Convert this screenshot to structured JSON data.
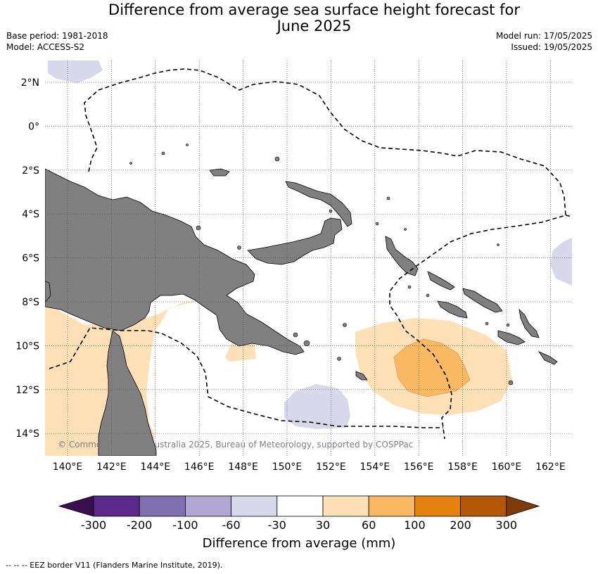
{
  "title_line1": "Difference from average sea surface height forecast for",
  "title_line2": "June 2025",
  "base_period": "Base period: 1981-2018",
  "model": "Model: ACCESS-S2",
  "model_run": "Model run: 17/05/2025",
  "issued": "Issued: 19/05/2025",
  "lat_labels": [
    "2°N",
    "0°",
    "2°S",
    "4°S",
    "6°S",
    "8°S",
    "10°S",
    "12°S",
    "14°S"
  ],
  "lon_labels": [
    "140°E",
    "142°E",
    "144°E",
    "146°E",
    "148°E",
    "150°E",
    "152°E",
    "154°E",
    "156°E",
    "158°E",
    "160°E",
    "162°E"
  ],
  "copyright": "© Commonwealth of Australia 2025, Bureau of Meteorology, supported by COSPPac",
  "colorbar": {
    "ticks": [
      "-300",
      "-200",
      "-100",
      "-60",
      "-30",
      "30",
      "60",
      "100",
      "200",
      "300"
    ],
    "colors": [
      "#3b0f4f",
      "#5a2a8a",
      "#8070b0",
      "#b0a8d2",
      "#d8d8ea",
      "#ffffff",
      "#fde0b6",
      "#f9b862",
      "#e3830e",
      "#b35806",
      "#7f3b08"
    ],
    "title": "Difference from average (mm)"
  },
  "footer": "--  --  -- EEZ border V11 (Flanders Marine Institute, 2019).",
  "colors": {
    "land": "#808080",
    "ocean": "#ffffff",
    "grid": "#555555"
  }
}
